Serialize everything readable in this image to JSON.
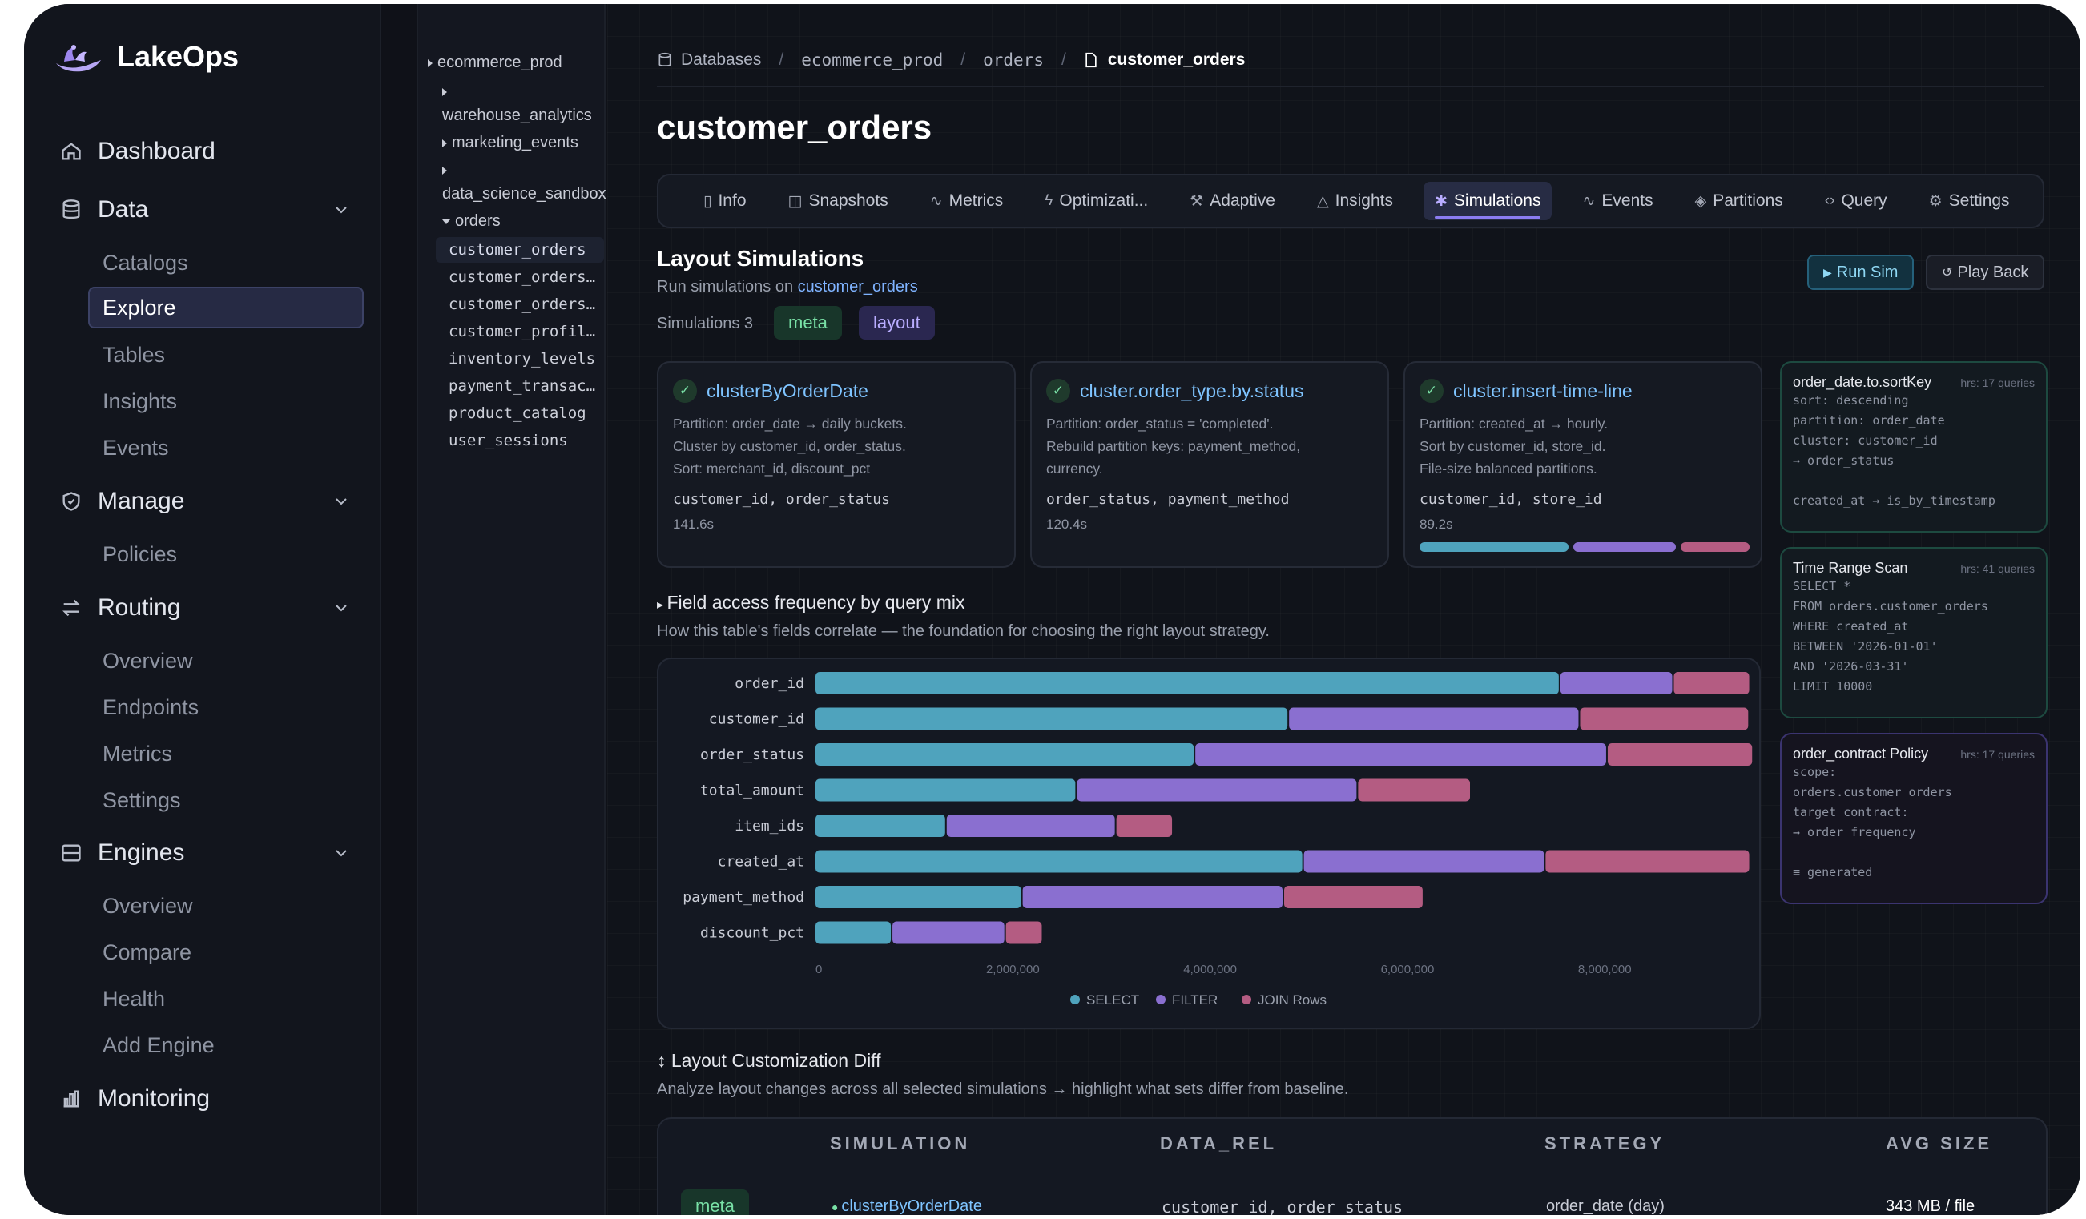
{
  "app": {
    "name": "LakeOps"
  },
  "nav": {
    "dashboard": "Dashboard",
    "data": {
      "label": "Data",
      "items": [
        "Catalogs",
        "Explore",
        "Tables",
        "Insights",
        "Events"
      ]
    },
    "manage": {
      "label": "Manage",
      "items": [
        "Policies"
      ]
    },
    "routing": {
      "label": "Routing",
      "items": [
        "Overview",
        "Endpoints",
        "Metrics",
        "Settings"
      ]
    },
    "engines": {
      "label": "Engines",
      "items": [
        "Overview",
        "Compare",
        "Health",
        "Add Engine"
      ]
    },
    "monitoring": "Monitoring",
    "active_item": "Explore"
  },
  "tree": {
    "items": [
      "ecommerce_prod",
      "warehouse_analytics",
      "marketing_events",
      "data_science_sandbox",
      "orders"
    ],
    "leaves": [
      "customer_orders",
      "customer_orders_archive",
      "customer_orders_staging",
      "customer_profiles",
      "inventory_levels",
      "payment_transactions",
      "product_catalog",
      "user_sessions"
    ]
  },
  "breadcrumb": {
    "root": "Databases",
    "db": "ecommerce_prod",
    "schema": "orders",
    "table": "customer_orders"
  },
  "page": {
    "title": "customer_orders"
  },
  "tabs": [
    {
      "label": "Info",
      "icon": "file-icon"
    },
    {
      "label": "Snapshots",
      "icon": "camera-icon"
    },
    {
      "label": "Metrics",
      "icon": "pulse-icon"
    },
    {
      "label": "Optimizati...",
      "icon": "bolt-icon"
    },
    {
      "label": "Adaptive",
      "icon": "wrench-icon"
    },
    {
      "label": "Insights",
      "icon": "warning-icon"
    },
    {
      "label": "Simulations",
      "icon": "sparkle-icon"
    },
    {
      "label": "Events",
      "icon": "pulse-icon"
    },
    {
      "label": "Partitions",
      "icon": "layers-icon"
    },
    {
      "label": "Query",
      "icon": "code-icon"
    },
    {
      "label": "Settings",
      "icon": "gear-icon"
    }
  ],
  "simulations": {
    "title": "Layout Simulations",
    "subtitle_prefix": "Run simulations on",
    "subtitle_table": "customer_orders",
    "count_label": "Simulations 3",
    "tags": [
      "meta",
      "layout"
    ],
    "run_label": "Run Sim",
    "play_label": "Play Back",
    "cards": [
      {
        "name": "clusterByOrderDate",
        "lines": [
          "Partition: order_date → daily buckets.",
          "Cluster by customer_id, order_status.",
          "Sort: merchant_id, discount_pct"
        ],
        "keys": "customer_id, order_status",
        "time": "141.6s"
      },
      {
        "name": "cluster.order_type.by.status",
        "lines": [
          "Partition: order_status = 'completed'.",
          "Rebuild partition keys: payment_method,",
          "currency."
        ],
        "keys": "order_status, payment_method",
        "time": "120.4s"
      },
      {
        "name": "cluster.insert-time-line",
        "lines": [
          "Partition: created_at → hourly.",
          "Sort by customer_id, store_id.",
          "File-size balanced partitions."
        ],
        "keys": "customer_id, store_id",
        "time": "89.2s"
      }
    ]
  },
  "queries": [
    {
      "title": "order_date.to.sortKey",
      "meta": "hrs: 17 queries",
      "lines": [
        "sort: descending",
        "partition: order_date",
        "cluster: customer_id",
        "→ order_status",
        "",
        "created_at → is_by_timestamp"
      ]
    },
    {
      "title": "Time Range Scan",
      "meta": "hrs: 41 queries",
      "lines": [
        "SELECT *",
        "FROM orders.customer_orders",
        "WHERE created_at",
        "BETWEEN '2026-01-01'",
        "AND '2026-03-31'",
        "LIMIT 10000"
      ]
    },
    {
      "title": "order_contract Policy",
      "meta": "hrs: 17 queries",
      "lines": [
        "scope:",
        "orders.customer_orders",
        "target_contract:",
        "→ order_frequency",
        "",
        "≡ generated"
      ]
    }
  ],
  "field_access": {
    "title": "Field access frequency by query mix",
    "subtitle": "How this table's fields correlate — the foundation for choosing the right layout strategy."
  },
  "chart_data": {
    "type": "bar",
    "orientation": "horizontal",
    "stacked": true,
    "categories": [
      "order_id",
      "customer_id",
      "order_status",
      "total_amount",
      "item_ids",
      "created_at",
      "payment_method",
      "discount_pct"
    ],
    "series": [
      {
        "name": "SELECT",
        "color": "#4fa3bd",
        "values": [
          7550000,
          4800000,
          3850000,
          2650000,
          1330000,
          4950000,
          2100000,
          780000
        ]
      },
      {
        "name": "FILTER",
        "color": "#8a6fd0",
        "values": [
          1150000,
          2950000,
          4180000,
          2850000,
          1720000,
          2450000,
          2650000,
          1150000
        ]
      },
      {
        "name": "JOIN Rows",
        "color": "#b45c82",
        "values": [
          780000,
          1720000,
          1480000,
          1150000,
          580000,
          2080000,
          1420000,
          380000
        ]
      }
    ],
    "xlim": [
      0,
      9500000
    ],
    "xticks": [
      "0",
      "2,000,000",
      "4,000,000",
      "6,000,000",
      "8,000,000"
    ],
    "xtick_values": [
      0,
      2000000,
      4000000,
      6000000,
      8000000
    ],
    "legend": "bottom-center",
    "grid": false
  },
  "diff": {
    "title": "Layout Customization Diff",
    "subtitle": "Analyze layout changes across all selected simulations → highlight what sets differ from baseline.",
    "headers": [
      "SIMULATION",
      "DATA_REL",
      "STRATEGY",
      "AVG SIZE"
    ],
    "row": {
      "tag": "meta",
      "simulation": "clusterByOrderDate",
      "data_rel": "customer_id, order_status",
      "strategy": "order_date (day)",
      "avg_size": "343 MB / file"
    }
  },
  "colors": {
    "select": "#4fa3bd",
    "filter": "#8a6fd0",
    "join": "#b45c82",
    "accent": "#7fc4ff"
  }
}
